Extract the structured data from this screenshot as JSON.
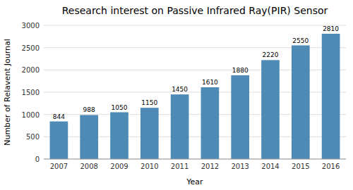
{
  "chart_data": {
    "type": "bar",
    "title": "Research interest on Passive Infrared Ray(PIR) Sensor",
    "xlabel": "Year",
    "ylabel": "Number of Relavent Journal",
    "categories": [
      "2007",
      "2008",
      "2009",
      "2010",
      "2011",
      "2012",
      "2013",
      "2014",
      "2015",
      "2016"
    ],
    "values": [
      844,
      988,
      1050,
      1150,
      1450,
      1610,
      1880,
      2220,
      2550,
      2810
    ],
    "color": "#4d8ab5",
    "ylim": [
      0,
      3000
    ],
    "yticks": [
      0,
      500,
      1000,
      1500,
      2000,
      2500,
      3000
    ],
    "grid": true,
    "data_labels": true
  }
}
